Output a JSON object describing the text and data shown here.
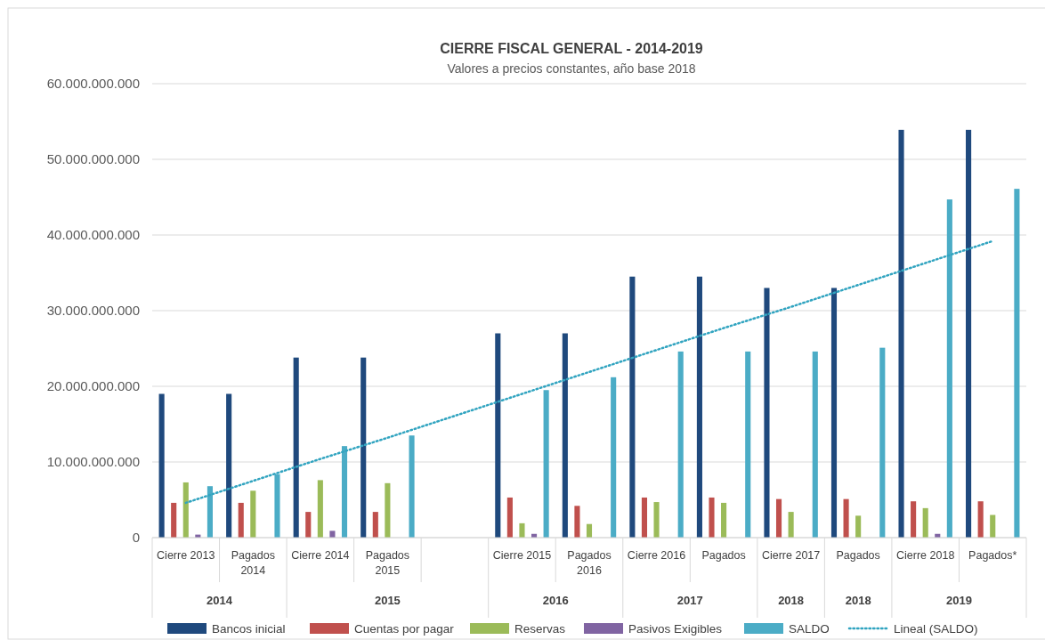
{
  "chart_data": {
    "type": "bar",
    "title": "CIERRE FISCAL GENERAL - 2014-2019",
    "subtitle": "Valores a precios constantes, año base 2018",
    "categories": [
      "Cierre 2013",
      "Pagados 2014",
      "Cierre 2014",
      "Pagados 2015",
      null,
      "Cierre 2015",
      "Pagados 2016",
      "Cierre 2016",
      "Pagados",
      "Cierre 2017",
      "Pagados",
      "Cierre 2018",
      "Pagados*"
    ],
    "series": [
      {
        "name": "Bancos inicial",
        "color": "#1f497d",
        "values": [
          19000000000.0,
          19000000000.0,
          23800000000.0,
          23800000000.0,
          null,
          27000000000.0,
          27000000000.0,
          34500000000.0,
          34500000000.0,
          33000000000.0,
          33000000000.0,
          53900000000.0,
          53900000000.0
        ]
      },
      {
        "name": "Cuentas por pagar",
        "color": "#c0504d",
        "values": [
          4600000000.0,
          4600000000.0,
          3400000000.0,
          3400000000.0,
          null,
          5300000000.0,
          4200000000.0,
          5300000000.0,
          5300000000.0,
          5100000000.0,
          5100000000.0,
          4800000000.0,
          4800000000.0
        ]
      },
      {
        "name": "Reservas",
        "color": "#9bbb59",
        "values": [
          7300000000.0,
          6200000000.0,
          7600000000.0,
          7200000000.0,
          null,
          1900000000.0,
          1800000000.0,
          4700000000.0,
          4600000000.0,
          3400000000.0,
          2900000000.0,
          3900000000.0,
          3000000000.0
        ]
      },
      {
        "name": "Pasivos Exigibles",
        "color": "#8064a2",
        "values": [
          400000000.0,
          null,
          900000000.0,
          null,
          null,
          500000000.0,
          null,
          null,
          null,
          null,
          null,
          500000000.0,
          null
        ]
      },
      {
        "name": "SALDO",
        "color": "#4bacc6",
        "values": [
          6800000000.0,
          8400000000.0,
          12100000000.0,
          13500000000.0,
          null,
          19500000000.0,
          21200000000.0,
          24600000000.0,
          24600000000.0,
          24600000000.0,
          25100000000.0,
          44700000000.0,
          46100000000.0
        ]
      },
      {
        "name": "Lineal (SALDO)",
        "type": "line",
        "line_style": "dotted",
        "color": "#31a4c0",
        "values": [
          4600000000.0,
          7500000000.0,
          10400000000.0,
          13200000000.0,
          16100000000.0,
          19000000000.0,
          21900000000.0,
          24800000000.0,
          27700000000.0,
          30500000000.0,
          33400000000.0,
          36300000000.0,
          39200000000.0
        ]
      }
    ],
    "ylim": [
      0,
      60000000000
    ],
    "yticks": [
      0,
      {
        "value": 10000000000,
        "label": "10.000.000.000"
      },
      {
        "value": 20000000000,
        "label": "20.000.000.000"
      },
      {
        "value": 30000000000,
        "label": "30.000.000.000"
      },
      {
        "value": 40000000000,
        "label": "40.000.000.000"
      },
      {
        "value": 50000000000,
        "label": "50.000.000.000"
      },
      {
        "value": 60000000000,
        "label": "60.000.000.000"
      }
    ],
    "annotations": [
      "2014",
      "2015",
      "2016",
      "2017",
      "2018",
      "2018",
      "2019"
    ],
    "grid": "y",
    "legend": "bottom"
  }
}
